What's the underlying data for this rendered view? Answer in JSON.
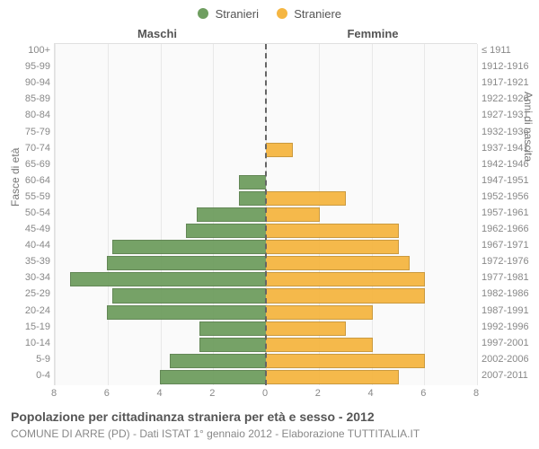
{
  "legend": {
    "male": {
      "label": "Stranieri",
      "color": "#6f9e60"
    },
    "female": {
      "label": "Straniere",
      "color": "#f5b642"
    }
  },
  "headers": {
    "left": "Maschi",
    "right": "Femmine"
  },
  "axis_titles": {
    "left": "Fasce di età",
    "right": "Anni di nascita"
  },
  "x": {
    "max": 8,
    "ticks": [
      8,
      6,
      4,
      2,
      0,
      2,
      4,
      6,
      8
    ]
  },
  "age_labels": [
    "100+",
    "95-99",
    "90-94",
    "85-89",
    "80-84",
    "75-79",
    "70-74",
    "65-69",
    "60-64",
    "55-59",
    "50-54",
    "45-49",
    "40-44",
    "35-39",
    "30-34",
    "25-29",
    "20-24",
    "15-19",
    "10-14",
    "5-9",
    "0-4"
  ],
  "birth_labels": [
    "≤ 1911",
    "1912-1916",
    "1917-1921",
    "1922-1926",
    "1927-1931",
    "1932-1936",
    "1937-1941",
    "1942-1946",
    "1947-1951",
    "1952-1956",
    "1957-1961",
    "1962-1966",
    "1967-1971",
    "1972-1976",
    "1977-1981",
    "1982-1986",
    "1987-1991",
    "1992-1996",
    "1997-2001",
    "2002-2006",
    "2007-2011"
  ],
  "male_values": [
    0,
    0,
    0,
    0,
    0,
    0,
    0,
    0,
    1,
    1,
    2.6,
    3,
    5.8,
    6,
    7.4,
    5.8,
    6,
    2.5,
    2.5,
    3.6,
    4
  ],
  "female_values": [
    0,
    0,
    0,
    0,
    0,
    0,
    1,
    0,
    0,
    3,
    2,
    5,
    5,
    5.4,
    6,
    6,
    4,
    3,
    4,
    6,
    5
  ],
  "colors": {
    "male_bar": "#6f9e60",
    "female_bar": "#f5b642",
    "plot_bg": "#fafafa",
    "grid": "#e8e8e8",
    "center": "#666666",
    "text_muted": "#888888"
  },
  "title": "Popolazione per cittadinanza straniera per età e sesso - 2012",
  "subtitle": "COMUNE DI ARRE (PD) - Dati ISTAT 1° gennaio 2012 - Elaborazione TUTTITALIA.IT"
}
